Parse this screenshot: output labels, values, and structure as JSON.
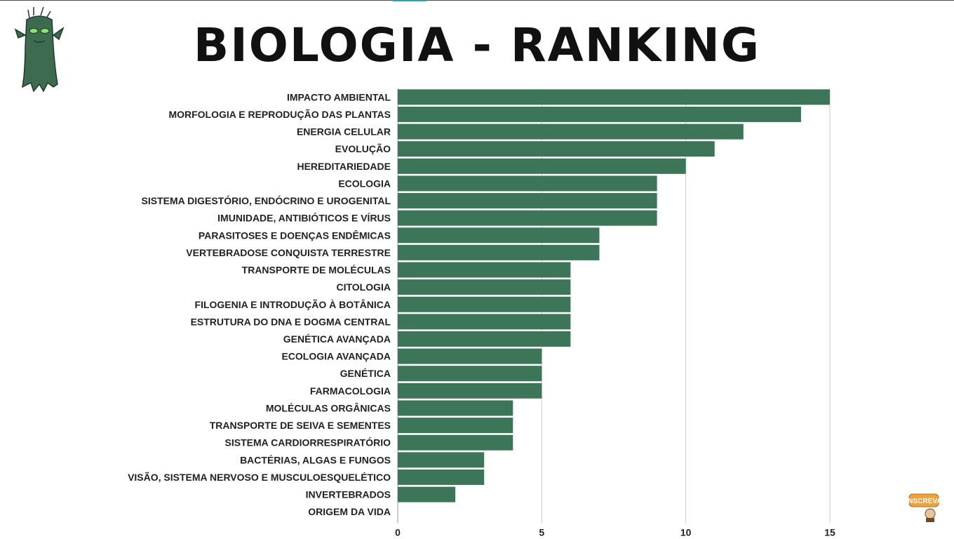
{
  "page": {
    "title": "BIOLOGIA - RANKING",
    "badge_text": "INSCREVA"
  },
  "colors": {
    "bar": "#3c7557",
    "grid": "#cccccc",
    "text": "#222222",
    "mascot": "#3d6b50",
    "badge": "#f2a23a"
  },
  "icons": {
    "mascot": "tree-mascot-icon",
    "subscribe": "subscribe-badge-icon"
  },
  "chart_data": {
    "type": "bar",
    "orientation": "horizontal",
    "title": "BIOLOGIA - RANKING",
    "xlabel": "",
    "ylabel": "",
    "xlim": [
      0,
      15
    ],
    "xticks": [
      0,
      5,
      10,
      15
    ],
    "grid": true,
    "categories": [
      "IMPACTO AMBIENTAL",
      "MORFOLOGIA E REPRODUÇÃO DAS PLANTAS",
      "ENERGIA CELULAR",
      "EVOLUÇÃO",
      "HEREDITARIEDADE",
      "ECOLOGIA",
      "SISTEMA DIGESTÓRIO, ENDÓCRINO E UROGENITAL",
      "IMUNIDADE, ANTIBIÓTICOS E VÍRUS",
      "PARASITOSES E DOENÇAS ENDÊMICAS",
      "VERTEBRADOSE CONQUISTA TERRESTRE",
      "TRANSPORTE DE MOLÉCULAS",
      "CITOLOGIA",
      "FILOGENIA E INTRODUÇÃO À BOTÂNICA",
      "ESTRUTURA DO DNA E DOGMA CENTRAL",
      "GENÉTICA AVANÇADA",
      "ECOLOGIA AVANÇADA",
      "GENÉTICA",
      "FARMACOLOGIA",
      "MOLÉCULAS ORGÂNICAS",
      "TRANSPORTE DE SEIVA E SEMENTES",
      "SISTEMA CARDIORRESPIRATÓRIO",
      "BACTÉRIAS, ALGAS E FUNGOS",
      "VISÃO, SISTEMA NERVOSO E MUSCULOESQUELÉTICO",
      "INVERTEBRADOS",
      "ORIGEM DA VIDA"
    ],
    "values": [
      15,
      14,
      12,
      11,
      10,
      9,
      9,
      9,
      7,
      7,
      6,
      6,
      6,
      6,
      6,
      5,
      5,
      5,
      4,
      4,
      4,
      3,
      3,
      2,
      0
    ]
  }
}
